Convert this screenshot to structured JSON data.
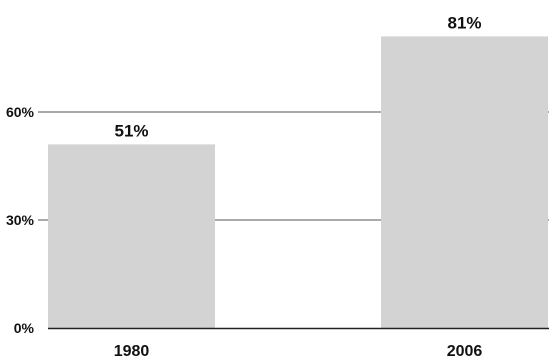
{
  "chart_data": {
    "type": "bar",
    "title": "",
    "xlabel": "",
    "ylabel": "",
    "categories": [
      "1980",
      "2006"
    ],
    "values": [
      51,
      81
    ],
    "data_labels": [
      "51%",
      "81%"
    ],
    "ylim": [
      0,
      90
    ],
    "yticks": [
      0,
      30,
      60
    ],
    "ytick_labels": [
      "0%",
      "30%",
      "60%"
    ],
    "grid": true,
    "legend": "none",
    "colors": {
      "bar": "#d3d3d3",
      "grid": "#555555",
      "axis": "#222222",
      "text": "#111111"
    }
  }
}
